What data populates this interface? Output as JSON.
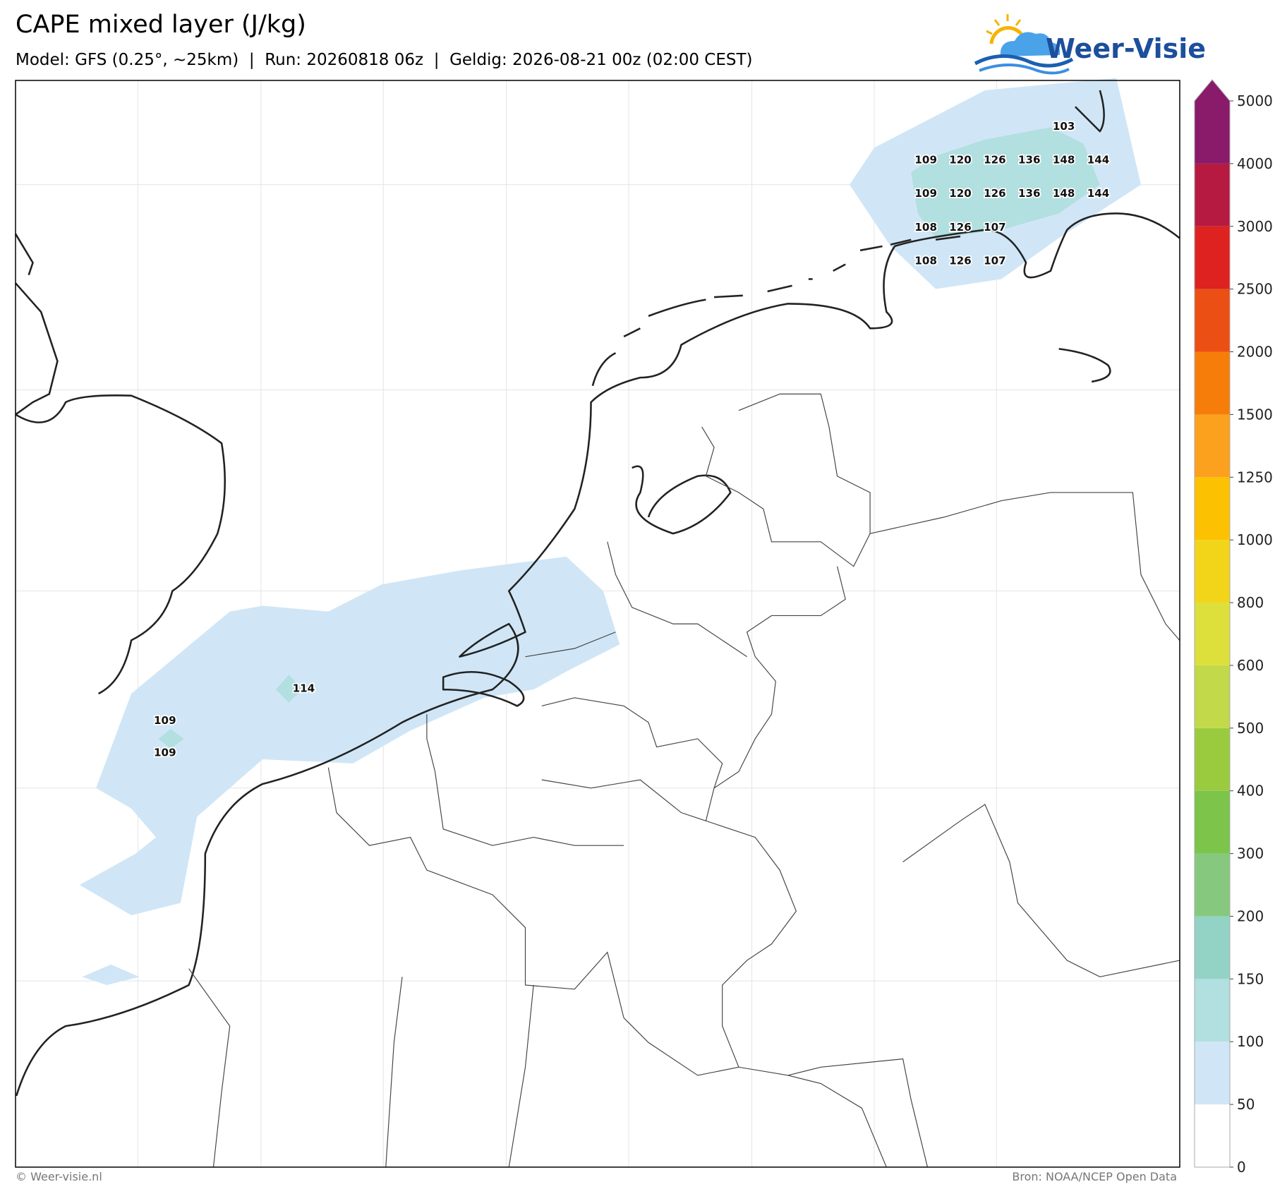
{
  "header": {
    "title": "CAPE mixed layer (J/kg)",
    "subtitle": "Model: GFS (0.25°, ~25km)  |  Run: 20260818 06z  |  Geldig: 2026-08-21 00z (02:00 CEST)"
  },
  "logo": {
    "text": "Weer-Visie"
  },
  "colorbar": {
    "ticks": [
      0,
      50,
      100,
      150,
      200,
      300,
      400,
      500,
      600,
      800,
      1000,
      1250,
      1500,
      2000,
      2500,
      3000,
      4000,
      5000
    ],
    "colors": [
      "#ffffff",
      "#d0e6f6",
      "#b2dfdf",
      "#93d3c6",
      "#86c97e",
      "#7dc44b",
      "#9acb3f",
      "#c2d94a",
      "#dde03b",
      "#f2d519",
      "#fcc201",
      "#fba11e",
      "#f77d0b",
      "#ec4f13",
      "#dd2220",
      "#b71a40",
      "#8a1a6a"
    ]
  },
  "map_labels": [
    103,
    109,
    120,
    126,
    136,
    148,
    144,
    109,
    120,
    126,
    136,
    148,
    144,
    108,
    126,
    107,
    108,
    126,
    107,
    114,
    109,
    109
  ],
  "footer": {
    "left": "© Weer-visie.nl",
    "right": "Bron: NOAA/NCEP Open Data"
  }
}
